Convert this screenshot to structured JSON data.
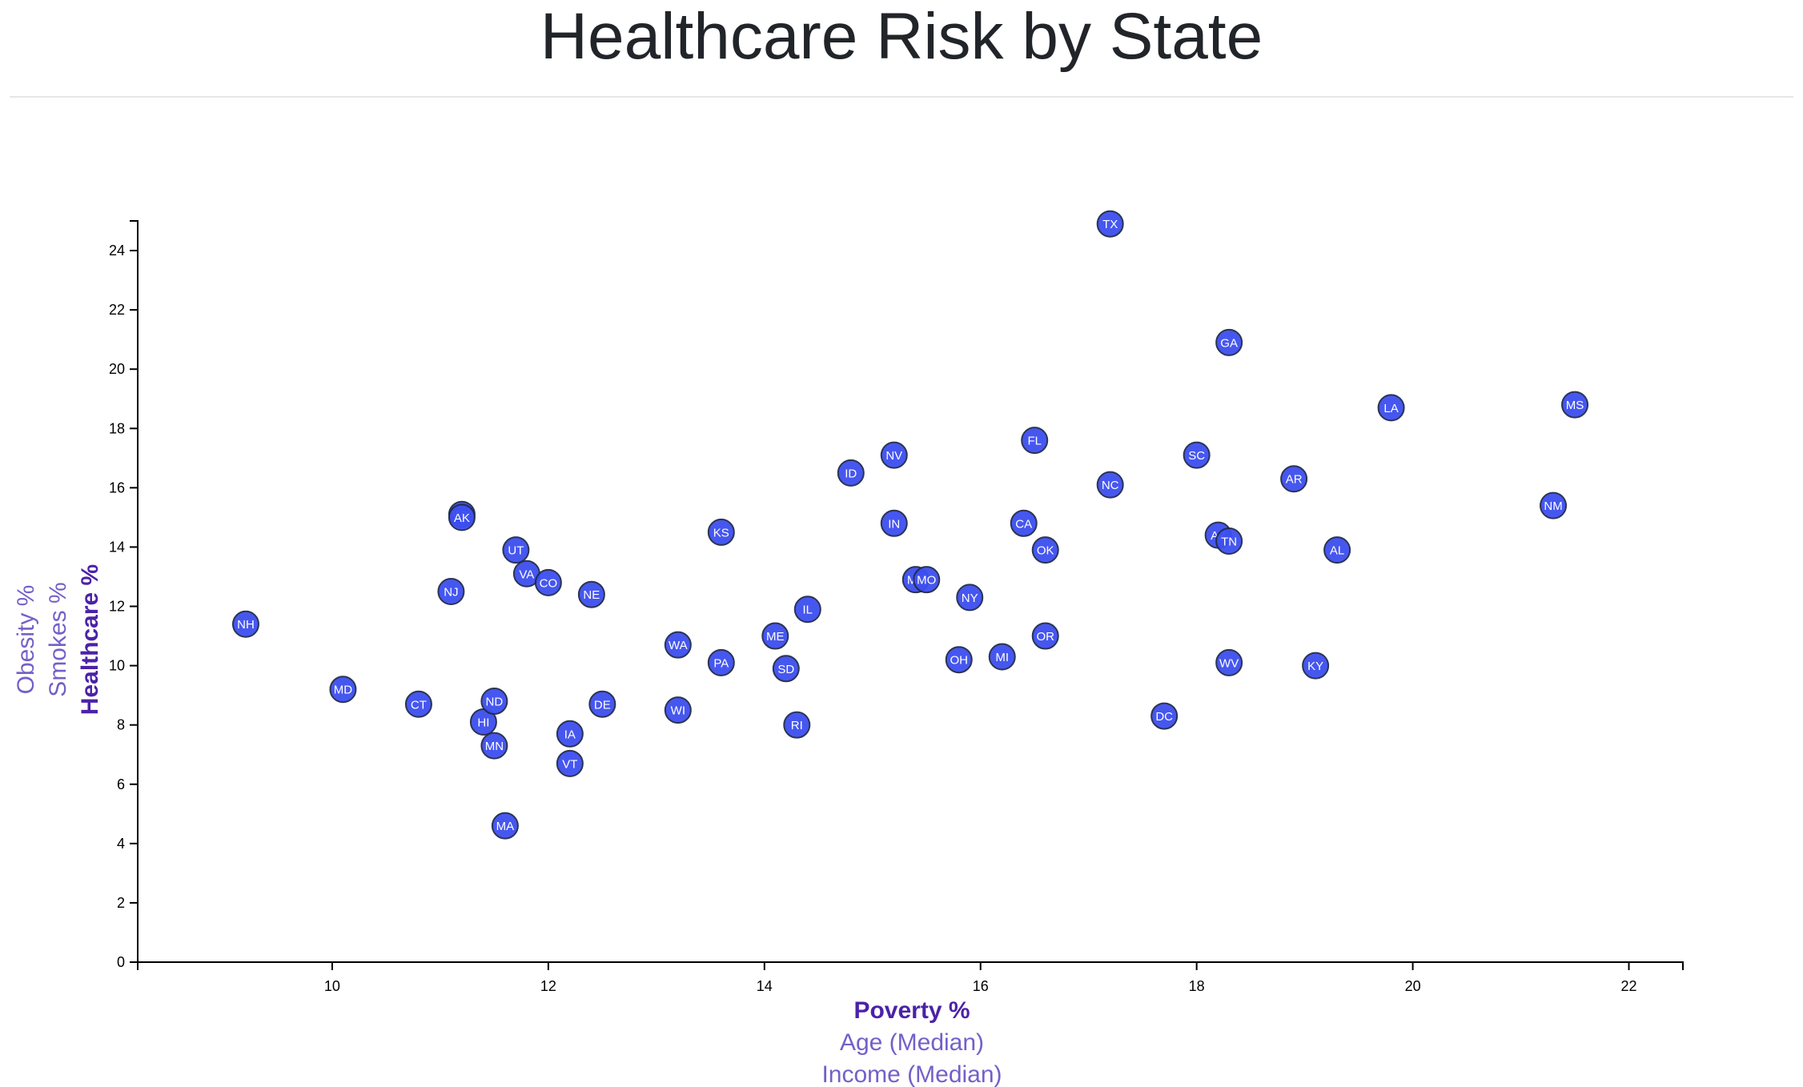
{
  "title": "Healthcare Risk by State",
  "chart_data": {
    "type": "scatter",
    "title": "Healthcare Risk by State",
    "xlim": [
      8.2,
      22.5
    ],
    "ylim": [
      0,
      25
    ],
    "x_ticks": [
      10,
      12,
      14,
      16,
      18,
      20,
      22
    ],
    "y_ticks": [
      0,
      2,
      4,
      6,
      8,
      10,
      12,
      14,
      16,
      18,
      20,
      22,
      24
    ],
    "x_axis_options": [
      {
        "label": "Poverty %",
        "active": true
      },
      {
        "label": "Age (Median)",
        "active": false
      },
      {
        "label": "Income (Median)",
        "active": false
      }
    ],
    "y_axis_options": [
      {
        "label": "Healthcare %",
        "active": true
      },
      {
        "label": "Smokes %",
        "active": false
      },
      {
        "label": "Obesity %",
        "active": false
      }
    ],
    "grid": false,
    "marker_color": "#3d4ff0",
    "points": [
      {
        "label": "NH",
        "x": 9.2,
        "y": 11.4
      },
      {
        "label": "MD",
        "x": 10.1,
        "y": 9.2
      },
      {
        "label": "CT",
        "x": 10.8,
        "y": 8.7
      },
      {
        "label": "NJ",
        "x": 11.1,
        "y": 12.5
      },
      {
        "label": "WY",
        "x": 11.2,
        "y": 15.1
      },
      {
        "label": "AK",
        "x": 11.2,
        "y": 15.0
      },
      {
        "label": "HI",
        "x": 11.4,
        "y": 8.1
      },
      {
        "label": "ND",
        "x": 11.5,
        "y": 8.8
      },
      {
        "label": "MN",
        "x": 11.5,
        "y": 7.3
      },
      {
        "label": "MA",
        "x": 11.6,
        "y": 4.6
      },
      {
        "label": "UT",
        "x": 11.7,
        "y": 13.9
      },
      {
        "label": "VA",
        "x": 11.8,
        "y": 13.1
      },
      {
        "label": "CO",
        "x": 12.0,
        "y": 12.8
      },
      {
        "label": "IA",
        "x": 12.2,
        "y": 7.7
      },
      {
        "label": "VT",
        "x": 12.2,
        "y": 6.7
      },
      {
        "label": "NE",
        "x": 12.4,
        "y": 12.4
      },
      {
        "label": "DE",
        "x": 12.5,
        "y": 8.7
      },
      {
        "label": "WA",
        "x": 13.2,
        "y": 10.7
      },
      {
        "label": "WI",
        "x": 13.2,
        "y": 8.5
      },
      {
        "label": "KS",
        "x": 13.6,
        "y": 14.5
      },
      {
        "label": "PA",
        "x": 13.6,
        "y": 10.1
      },
      {
        "label": "ME",
        "x": 14.1,
        "y": 11.0
      },
      {
        "label": "SD",
        "x": 14.2,
        "y": 9.9
      },
      {
        "label": "RI",
        "x": 14.3,
        "y": 8.0
      },
      {
        "label": "IL",
        "x": 14.4,
        "y": 11.9
      },
      {
        "label": "ID",
        "x": 14.8,
        "y": 16.5
      },
      {
        "label": "NV",
        "x": 15.2,
        "y": 17.1
      },
      {
        "label": "IN",
        "x": 15.2,
        "y": 14.8
      },
      {
        "label": "MT",
        "x": 15.4,
        "y": 12.9
      },
      {
        "label": "MO",
        "x": 15.5,
        "y": 12.9
      },
      {
        "label": "OH",
        "x": 15.8,
        "y": 10.2
      },
      {
        "label": "NY",
        "x": 15.9,
        "y": 12.3
      },
      {
        "label": "MI",
        "x": 16.2,
        "y": 10.3
      },
      {
        "label": "CA",
        "x": 16.4,
        "y": 14.8
      },
      {
        "label": "FL",
        "x": 16.5,
        "y": 17.6
      },
      {
        "label": "OK",
        "x": 16.6,
        "y": 13.9
      },
      {
        "label": "OR",
        "x": 16.6,
        "y": 11.0
      },
      {
        "label": "TX",
        "x": 17.2,
        "y": 24.9
      },
      {
        "label": "NC",
        "x": 17.2,
        "y": 16.1
      },
      {
        "label": "DC",
        "x": 17.7,
        "y": 8.3
      },
      {
        "label": "SC",
        "x": 18.0,
        "y": 17.1
      },
      {
        "label": "AZ",
        "x": 18.2,
        "y": 14.4
      },
      {
        "label": "GA",
        "x": 18.3,
        "y": 20.9
      },
      {
        "label": "TN",
        "x": 18.3,
        "y": 14.2
      },
      {
        "label": "WV",
        "x": 18.3,
        "y": 10.1
      },
      {
        "label": "AR",
        "x": 18.9,
        "y": 16.3
      },
      {
        "label": "KY",
        "x": 19.1,
        "y": 10.0
      },
      {
        "label": "AL",
        "x": 19.3,
        "y": 13.9
      },
      {
        "label": "LA",
        "x": 19.8,
        "y": 18.7
      },
      {
        "label": "NM",
        "x": 21.3,
        "y": 15.4
      },
      {
        "label": "MS",
        "x": 21.5,
        "y": 18.8
      }
    ]
  }
}
